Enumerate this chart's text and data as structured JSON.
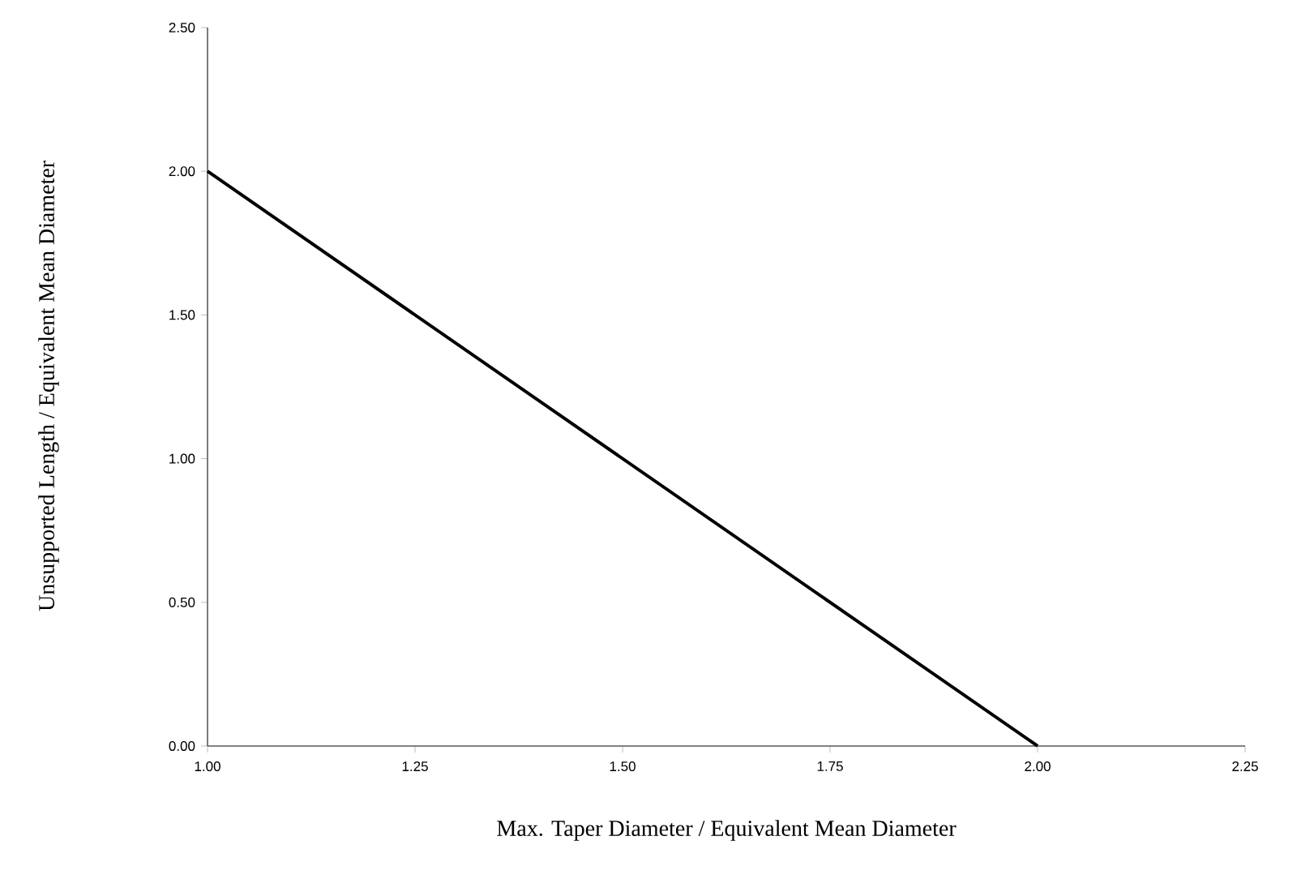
{
  "chart_data": {
    "type": "line",
    "xlabel": "Max. Taper Diameter / Equivalent Mean Diameter",
    "ylabel": "Unsupported Length / Equivalent Mean Diameter",
    "x": [
      1.0,
      2.0
    ],
    "series": [
      {
        "color": "#000000",
        "values": [
          2.0,
          0.0
        ]
      }
    ],
    "xlim": [
      1.0,
      2.25
    ],
    "ylim": [
      0.0,
      2.5
    ],
    "xticks": [
      {
        "value": 1.0,
        "label": "1.00"
      },
      {
        "value": 1.25,
        "label": "1.25"
      },
      {
        "value": 1.5,
        "label": "1.50"
      },
      {
        "value": 1.75,
        "label": "1.75"
      },
      {
        "value": 2.0,
        "label": "2.00"
      },
      {
        "value": 2.25,
        "label": "2.25"
      }
    ],
    "yticks": [
      {
        "value": 0.0,
        "label": "0.00"
      },
      {
        "value": 0.5,
        "label": "0.50"
      },
      {
        "value": 1.0,
        "label": "1.00"
      },
      {
        "value": 1.5,
        "label": "1.50"
      },
      {
        "value": 2.0,
        "label": "2.00"
      },
      {
        "value": 2.5,
        "label": "2.50"
      }
    ],
    "grid": false,
    "marker": "none",
    "line_style": "solid"
  }
}
